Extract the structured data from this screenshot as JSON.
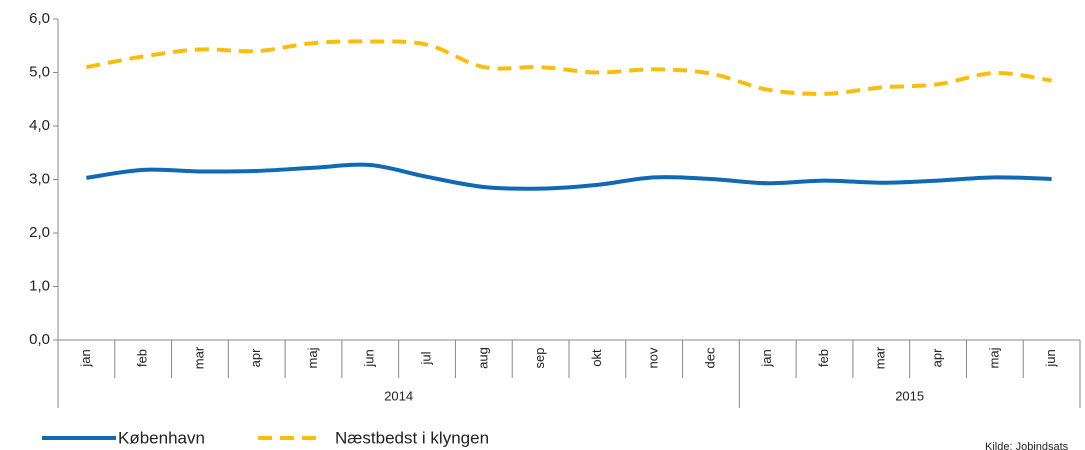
{
  "chart_data": {
    "type": "line",
    "categories": [
      [
        "jan",
        "2014"
      ],
      [
        "feb",
        "2014"
      ],
      [
        "mar",
        "2014"
      ],
      [
        "apr",
        "2014"
      ],
      [
        "maj",
        "2014"
      ],
      [
        "jun",
        "2014"
      ],
      [
        "jul",
        "2014"
      ],
      [
        "aug",
        "2014"
      ],
      [
        "sep",
        "2014"
      ],
      [
        "okt",
        "2014"
      ],
      [
        "nov",
        "2014"
      ],
      [
        "dec",
        "2014"
      ],
      [
        "jan",
        "2015"
      ],
      [
        "feb",
        "2015"
      ],
      [
        "mar",
        "2015"
      ],
      [
        "apr",
        "2015"
      ],
      [
        "maj",
        "2015"
      ],
      [
        "jun",
        "2015"
      ]
    ],
    "series": [
      {
        "name": "København",
        "color": "#1069b3",
        "dashed": false,
        "values": [
          3.03,
          3.18,
          3.15,
          3.16,
          3.22,
          3.27,
          3.05,
          2.86,
          2.83,
          2.9,
          3.04,
          3.01,
          2.93,
          2.98,
          2.94,
          2.98,
          3.04,
          3.01
        ]
      },
      {
        "name": "Næstbedst i klyngen",
        "color": "#fbbd0b",
        "dashed": true,
        "values": [
          5.1,
          5.3,
          5.43,
          5.4,
          5.55,
          5.58,
          5.52,
          5.1,
          5.1,
          5.0,
          5.06,
          4.98,
          4.68,
          4.6,
          4.72,
          4.78,
          4.99,
          4.85
        ]
      }
    ],
    "ylim": [
      0,
      6
    ],
    "yticks": [
      {
        "value": 0,
        "label": "0,0"
      },
      {
        "value": 1,
        "label": "1,0"
      },
      {
        "value": 2,
        "label": "2,0"
      },
      {
        "value": 3,
        "label": "3,0"
      },
      {
        "value": 4,
        "label": "4,0"
      },
      {
        "value": 5,
        "label": "5,0"
      },
      {
        "value": 6,
        "label": "6,0"
      }
    ],
    "grid": false,
    "legend": "bottom",
    "source": "Kilde: Jobindsats"
  }
}
